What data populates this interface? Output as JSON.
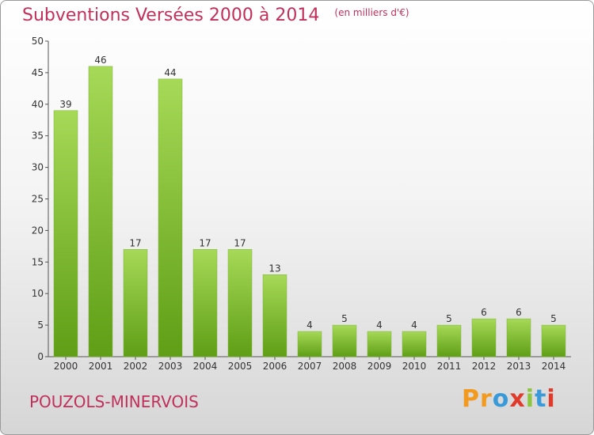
{
  "title": "Subventions Versées 2000 à 2014",
  "subtitle": "(en milliers d'€)",
  "commune": "POUZOLS-MINERVOIS",
  "logo": {
    "text": "Proxiti",
    "letter_colors": [
      "#f29a1f",
      "#f29a1f",
      "#3a9ad9",
      "#e03a2a",
      "#8cc63f",
      "#3a9ad9",
      "#e03a2a"
    ]
  },
  "colors": {
    "title": "#c0305a",
    "bar_top": "#a6d957",
    "bar_bottom": "#5f9e16",
    "axis": "#555555"
  },
  "chart_data": {
    "type": "bar",
    "categories": [
      "2000",
      "2001",
      "2002",
      "2003",
      "2004",
      "2005",
      "2006",
      "2007",
      "2008",
      "2009",
      "2010",
      "2011",
      "2012",
      "2013",
      "2014"
    ],
    "values": [
      39,
      46,
      17,
      44,
      17,
      17,
      13,
      4,
      5,
      4,
      4,
      5,
      6,
      6,
      5
    ],
    "ylim": [
      0,
      50
    ],
    "yticks": [
      0,
      5,
      10,
      15,
      20,
      25,
      30,
      35,
      40,
      45,
      50
    ],
    "grid": false,
    "legend": "none",
    "data_labels": true
  }
}
